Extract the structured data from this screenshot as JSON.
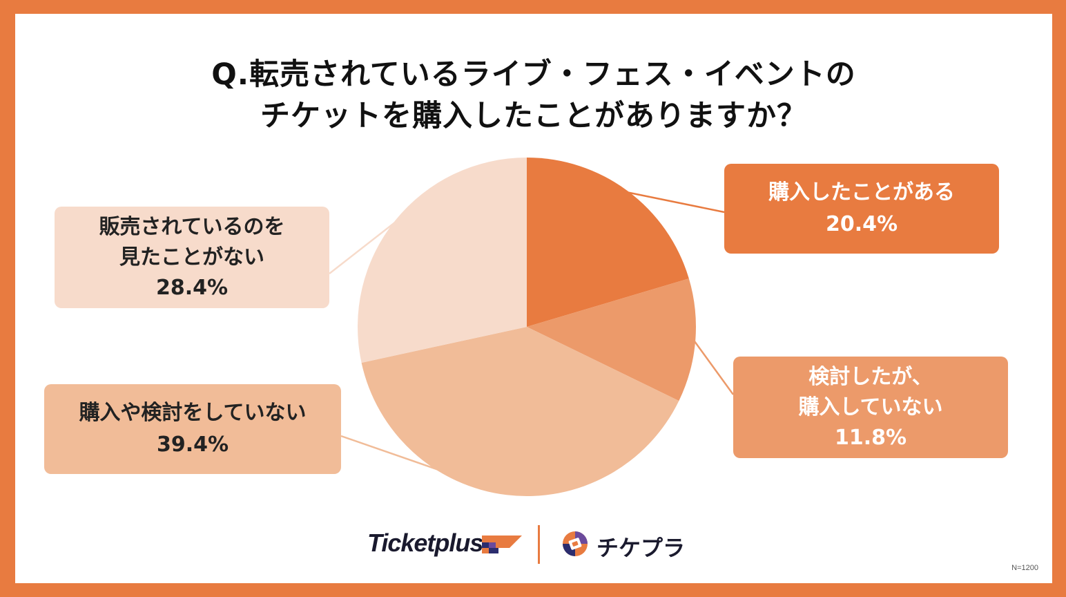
{
  "title": {
    "line1": "Q.転売されているライブ・フェス・イベントの",
    "line2": "チケットを購入したことがありますか？"
  },
  "chart_data": {
    "type": "pie",
    "categories": [
      "購入したことがある",
      "検討したが、購入していない",
      "購入や検討をしていない",
      "販売されているのを見たことがない"
    ],
    "values": [
      20.4,
      11.8,
      39.4,
      28.4
    ],
    "colors": [
      "#E87B40",
      "#EC9A6A",
      "#F1BC98",
      "#F7DBCB"
    ],
    "start_angle": "12 o'clock",
    "direction": "clockwise"
  },
  "labels": [
    {
      "lines": [
        "購入したことがある"
      ],
      "value": "20.4%"
    },
    {
      "lines": [
        "検討したが、",
        "購入していない"
      ],
      "value": "11.8%"
    },
    {
      "lines": [
        "購入や検討をしていない"
      ],
      "value": "39.4%"
    },
    {
      "lines": [
        "販売されているのを",
        "見たことがない"
      ],
      "value": "28.4%"
    }
  ],
  "footer": {
    "brand1": "Ticketplus",
    "brand2": "チケプラ",
    "n_note": "N=1200"
  },
  "colors": {
    "border": "#E87B40",
    "background": "#FFFFFF",
    "text": "#111111"
  },
  "icons": [
    "ticketplus-flag-icon",
    "chikepura-ticket-icon"
  ]
}
